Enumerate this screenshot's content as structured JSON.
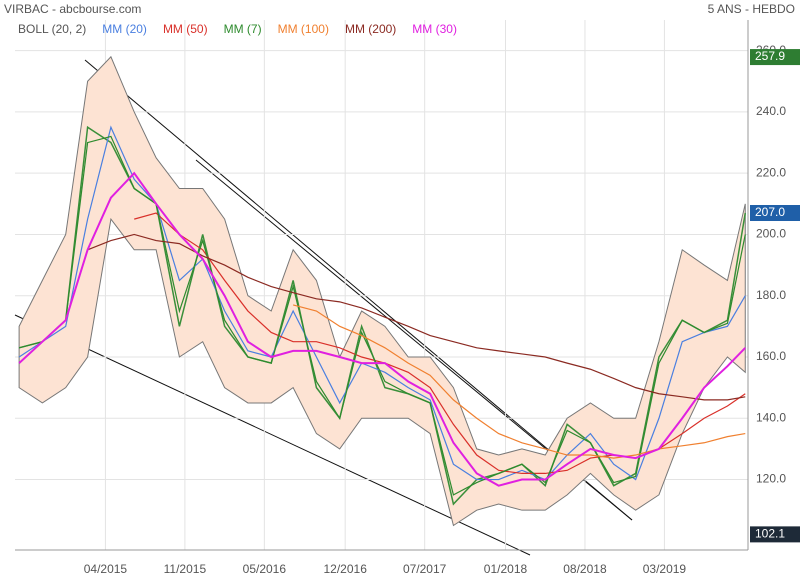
{
  "chart_data": {
    "type": "line",
    "title": "VIRBAC - abcbourse.com",
    "subtitle": "5 ANS - HEBDO",
    "x": [
      2014.63,
      2014.8,
      2014.97,
      2015.13,
      2015.3,
      2015.47,
      2015.63,
      2015.8,
      2015.97,
      2016.13,
      2016.3,
      2016.47,
      2016.63,
      2016.8,
      2016.97,
      2017.13,
      2017.3,
      2017.47,
      2017.63,
      2017.8,
      2017.97,
      2018.13,
      2018.3,
      2018.47,
      2018.63,
      2018.8,
      2018.97,
      2019.13,
      2019.3,
      2019.47,
      2019.63,
      2019.8,
      2019.93
    ],
    "price": {
      "color": "#3a8f3a",
      "values": [
        163,
        165,
        172,
        235,
        230,
        215,
        210,
        170,
        200,
        170,
        160,
        158,
        185,
        150,
        140,
        170,
        150,
        148,
        145,
        112,
        120,
        122,
        125,
        118,
        138,
        132,
        118,
        122,
        160,
        172,
        168,
        172,
        207
      ]
    },
    "bands": {
      "name": "BOLL (20, 2)",
      "color": "#fde3d3",
      "upper": [
        170,
        185,
        200,
        250,
        258,
        240,
        225,
        215,
        215,
        205,
        180,
        175,
        195,
        185,
        160,
        175,
        170,
        160,
        160,
        150,
        130,
        128,
        130,
        128,
        140,
        145,
        140,
        140,
        165,
        195,
        190,
        185,
        210
      ],
      "lower": [
        150,
        145,
        150,
        160,
        205,
        195,
        195,
        160,
        165,
        150,
        145,
        145,
        150,
        135,
        130,
        140,
        140,
        140,
        135,
        105,
        110,
        112,
        110,
        110,
        115,
        122,
        115,
        110,
        115,
        135,
        150,
        160,
        155
      ]
    },
    "series": [
      {
        "name": "MM (20)",
        "color": "#4a7fe0",
        "values": [
          160,
          165,
          170,
          205,
          235,
          218,
          210,
          185,
          192,
          175,
          162,
          160,
          175,
          160,
          145,
          158,
          155,
          150,
          146,
          125,
          120,
          120,
          123,
          120,
          128,
          135,
          125,
          120,
          140,
          165,
          168,
          170,
          180
        ]
      },
      {
        "name": "MM (50)",
        "color": "#d9302a",
        "values": [
          null,
          null,
          null,
          null,
          null,
          205,
          207,
          200,
          195,
          185,
          175,
          168,
          165,
          165,
          163,
          160,
          158,
          155,
          150,
          138,
          128,
          123,
          122,
          122,
          123,
          127,
          128,
          127,
          130,
          135,
          140,
          144,
          148
        ]
      },
      {
        "name": "MM (7)",
        "color": "#2e8b2e",
        "values": [
          163,
          165,
          172,
          230,
          232,
          215,
          210,
          175,
          198,
          172,
          160,
          158,
          183,
          152,
          140,
          168,
          152,
          148,
          145,
          115,
          119,
          122,
          125,
          119,
          136,
          132,
          119,
          121,
          158,
          172,
          168,
          171,
          200
        ]
      },
      {
        "name": "MM (100)",
        "color": "#f08030",
        "values": [
          null,
          null,
          null,
          null,
          null,
          null,
          null,
          null,
          null,
          null,
          null,
          null,
          177,
          175,
          170,
          167,
          163,
          158,
          154,
          146,
          140,
          135,
          132,
          130,
          128,
          128,
          127,
          128,
          130,
          131,
          132,
          134,
          135
        ]
      },
      {
        "name": "MM (200)",
        "color": "#8b2a22",
        "values": [
          null,
          null,
          null,
          195,
          198,
          200,
          198,
          197,
          193,
          190,
          186,
          183,
          181,
          179,
          178,
          176,
          173,
          170,
          167,
          165,
          163,
          162,
          161,
          160,
          158,
          156,
          153,
          150,
          148,
          147,
          146,
          146,
          147
        ]
      },
      {
        "name": "MM (30)",
        "color": "#e020e0",
        "values": [
          158,
          165,
          172,
          195,
          212,
          220,
          210,
          200,
          192,
          180,
          165,
          160,
          162,
          162,
          160,
          158,
          158,
          152,
          148,
          132,
          122,
          118,
          120,
          120,
          125,
          130,
          128,
          127,
          130,
          140,
          150,
          157,
          163
        ]
      }
    ],
    "markers": [
      {
        "value": 257.9,
        "color": "#2e7d32"
      },
      {
        "value": {
          "value": 207,
          "label": "207.0"
        },
        "color": "#1f5fa8"
      },
      {
        "value": 102.1,
        "color": "#1e2a38"
      }
    ],
    "xlim": [
      2014.6,
      2019.95
    ],
    "xticks": [
      {
        "value": 2015.26,
        "label": "04/2015"
      },
      {
        "value": 2015.84,
        "label": "11/2015"
      },
      {
        "value": 2016.42,
        "label": "05/2016"
      },
      {
        "value": 2017.01,
        "label": "12/2016"
      },
      {
        "value": 2017.59,
        "label": "07/2017"
      },
      {
        "value": 2018.18,
        "label": "01/2018"
      },
      {
        "value": 2018.76,
        "label": "08/2018"
      },
      {
        "value": 2019.34,
        "label": "03/2019"
      }
    ],
    "ylim": [
      97,
      270
    ],
    "yticks": [
      {
        "value": 120,
        "label": "120.0"
      },
      {
        "value": 140,
        "label": "140.0"
      },
      {
        "value": 160,
        "label": "160.0"
      },
      {
        "value": 180,
        "label": "180.0"
      },
      {
        "value": 200,
        "label": "200.0"
      },
      {
        "value": 220,
        "label": "220.0"
      },
      {
        "value": 240,
        "label": "240.0"
      },
      {
        "value": 260,
        "label": "260.0"
      }
    ],
    "grid": true
  }
}
